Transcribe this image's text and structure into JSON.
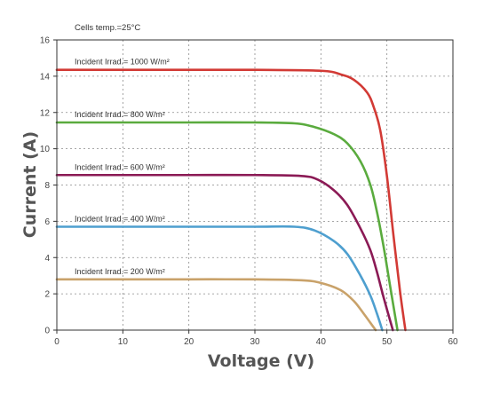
{
  "chart_data": {
    "type": "line",
    "title": "",
    "annotation": "Cells temp.=25°C",
    "xlabel": "Voltage (V)",
    "ylabel": "Current (A)",
    "xlim": [
      0,
      60
    ],
    "ylim": [
      0,
      16
    ],
    "xticks": [
      0,
      10,
      20,
      30,
      40,
      50,
      60
    ],
    "yticks": [
      0,
      2,
      4,
      6,
      8,
      10,
      12,
      14,
      16
    ],
    "grid": true,
    "legend": "none",
    "series": [
      {
        "name": "Incident Irrad.= 1000 W/m²",
        "color": "#d23a35",
        "x": [
          0,
          10,
          20,
          30,
          40,
          43,
          45,
          47,
          48,
          49,
          50,
          51,
          52,
          52.8
        ],
        "y": [
          14.35,
          14.35,
          14.35,
          14.35,
          14.3,
          14.1,
          13.8,
          13.1,
          12.3,
          11.0,
          8.5,
          5.2,
          2.1,
          0
        ]
      },
      {
        "name": "Incident Irrad.= 800 W/m²",
        "color": "#5aab3e",
        "x": [
          0,
          10,
          20,
          30,
          36,
          39,
          42,
          44,
          46,
          47.5,
          48.5,
          49.5,
          50.5,
          51.6
        ],
        "y": [
          11.45,
          11.45,
          11.45,
          11.45,
          11.4,
          11.2,
          10.8,
          10.3,
          9.3,
          8.0,
          6.5,
          4.6,
          2.4,
          0
        ]
      },
      {
        "name": "Incident Irrad.= 600 W/m²",
        "color": "#8b1a55",
        "x": [
          0,
          10,
          20,
          30,
          37,
          39.5,
          42,
          44,
          46,
          47.5,
          48.5,
          49.5,
          50.9
        ],
        "y": [
          8.55,
          8.55,
          8.55,
          8.55,
          8.5,
          8.3,
          7.7,
          6.9,
          5.6,
          4.4,
          3.2,
          1.8,
          0
        ]
      },
      {
        "name": "Incident Irrad.= 400 W/m²",
        "color": "#4e9fcf",
        "x": [
          0,
          10,
          20,
          30,
          36,
          39,
          42,
          44,
          46,
          47.5,
          48.5,
          49.3
        ],
        "y": [
          5.7,
          5.7,
          5.7,
          5.7,
          5.7,
          5.5,
          4.9,
          4.2,
          3.0,
          1.9,
          0.9,
          0
        ]
      },
      {
        "name": "Incident Irrad.= 200 W/m²",
        "color": "#c9a26a",
        "x": [
          0,
          10,
          20,
          30,
          37,
          40,
          43,
          45,
          46.5,
          47.5,
          48.3
        ],
        "y": [
          2.8,
          2.8,
          2.8,
          2.8,
          2.75,
          2.6,
          2.2,
          1.6,
          0.9,
          0.4,
          0
        ]
      }
    ]
  }
}
